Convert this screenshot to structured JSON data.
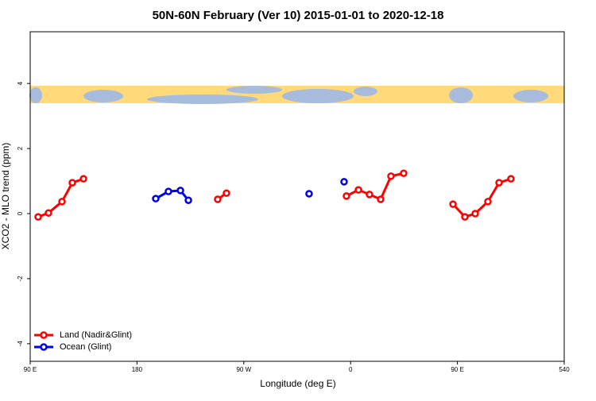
{
  "chart_data": {
    "type": "line",
    "title": "50N-60N February (Ver 10)   2015-01-01 to 2020-12-18",
    "xlabel": "Longitude (deg E)",
    "ylabel": "XCO2 - MLO trend (ppm)",
    "xlim": [
      90,
      540
    ],
    "ylim": [
      -4.54,
      5.59
    ],
    "xticks": [
      {
        "value": 90,
        "label": "90 E"
      },
      180,
      {
        "value": 270,
        "label": "90 W"
      },
      {
        "value": 360,
        "label": "0"
      },
      {
        "value": 450,
        "label": "90 E"
      },
      540
    ],
    "yticks": [
      -4,
      -2,
      0,
      2,
      4
    ],
    "legend": "bottom-left",
    "series": [
      {
        "name": "Land (Nadir&Glint)",
        "color": "#ff0000",
        "x": [
          96.7,
          105.4,
          116.8,
          125.5,
          134.9,
          null,
          248.0,
          255.4,
          null,
          356.5,
          366.6,
          375.9,
          385.3,
          394.0,
          404.7,
          null,
          446.3,
          456.3,
          465.0,
          475.7,
          485.1,
          495.1
        ],
        "values": [
          -0.1,
          0.02,
          0.37,
          0.95,
          1.07,
          null,
          0.44,
          0.63,
          null,
          0.54,
          0.73,
          0.59,
          0.44,
          1.15,
          1.24,
          null,
          0.29,
          -0.1,
          0.0,
          0.37,
          0.95,
          1.07
        ]
      },
      {
        "name": "Ocean (Glint)",
        "color": "#0000ee",
        "x": [
          195.8,
          206.5,
          216.6,
          223.3,
          null,
          325.0,
          null,
          354.5
        ],
        "values": [
          0.46,
          0.68,
          0.71,
          0.41,
          null,
          0.61,
          null,
          0.98
        ]
      }
    ]
  }
}
